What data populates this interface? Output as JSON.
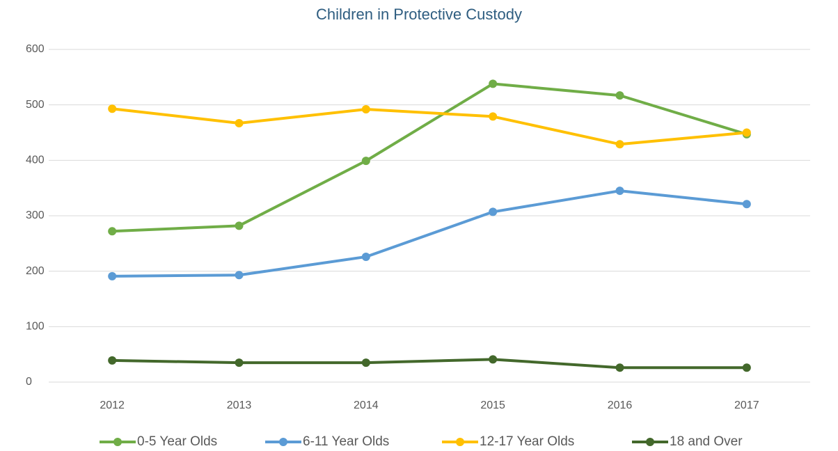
{
  "chart_data": {
    "type": "line",
    "title": "Children in Protective Custody",
    "categories": [
      "2012",
      "2013",
      "2014",
      "2015",
      "2016",
      "2017"
    ],
    "series": [
      {
        "name": "0-5 Year Olds",
        "color": "#70ad47",
        "values": [
          272,
          282,
          399,
          538,
          517,
          447
        ]
      },
      {
        "name": "6-11 Year Olds",
        "color": "#5b9bd5",
        "values": [
          191,
          193,
          226,
          307,
          345,
          321
        ]
      },
      {
        "name": "12-17 Year Olds",
        "color": "#ffc000",
        "values": [
          493,
          467,
          492,
          479,
          429,
          450
        ]
      },
      {
        "name": "18 and Over",
        "color": "#43682b",
        "values": [
          39,
          35,
          35,
          41,
          26,
          26
        ]
      }
    ],
    "ylim": [
      0,
      600
    ],
    "yticks": [
      0,
      100,
      200,
      300,
      400,
      500,
      600
    ],
    "grid": true,
    "legend": "bottom"
  }
}
